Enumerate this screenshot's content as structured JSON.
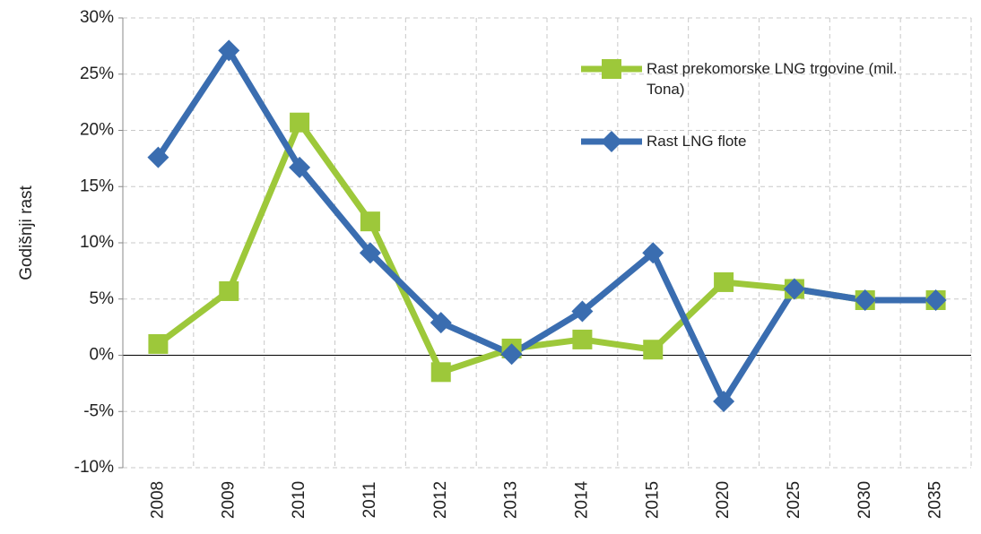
{
  "chart_data": {
    "type": "line",
    "y_label": "Godišnji rast",
    "categories": [
      "2008",
      "2009",
      "2010",
      "2011",
      "2012",
      "2013",
      "2014",
      "2015",
      "2020",
      "2025",
      "2030",
      "2035"
    ],
    "series": [
      {
        "name": "Rast prekomorske LNG trgovine (mil. Tona)",
        "color": "#9dc83a",
        "marker": "square",
        "values": [
          1,
          5.7,
          20.7,
          11.9,
          -1.5,
          0.6,
          1.4,
          0.5,
          6.5,
          5.9,
          4.9,
          4.9
        ]
      },
      {
        "name": "Rast LNG flote",
        "color": "#3a6db0",
        "marker": "diamond",
        "values": [
          17.6,
          27.1,
          16.7,
          9.1,
          2.9,
          0.1,
          3.9,
          9.1,
          -4.1,
          5.9,
          4.9,
          4.9
        ]
      }
    ],
    "ylim": [
      -10,
      30
    ],
    "yticks": [
      {
        "value": -10,
        "label": "-10%"
      },
      {
        "value": -5,
        "label": "-5%"
      },
      {
        "value": 0,
        "label": "0%"
      },
      {
        "value": 5,
        "label": "5%"
      },
      {
        "value": 10,
        "label": "10%"
      },
      {
        "value": 15,
        "label": "15%"
      },
      {
        "value": 20,
        "label": "20%"
      },
      {
        "value": 25,
        "label": "25%"
      },
      {
        "value": 30,
        "label": "30%"
      }
    ],
    "grid": true
  }
}
